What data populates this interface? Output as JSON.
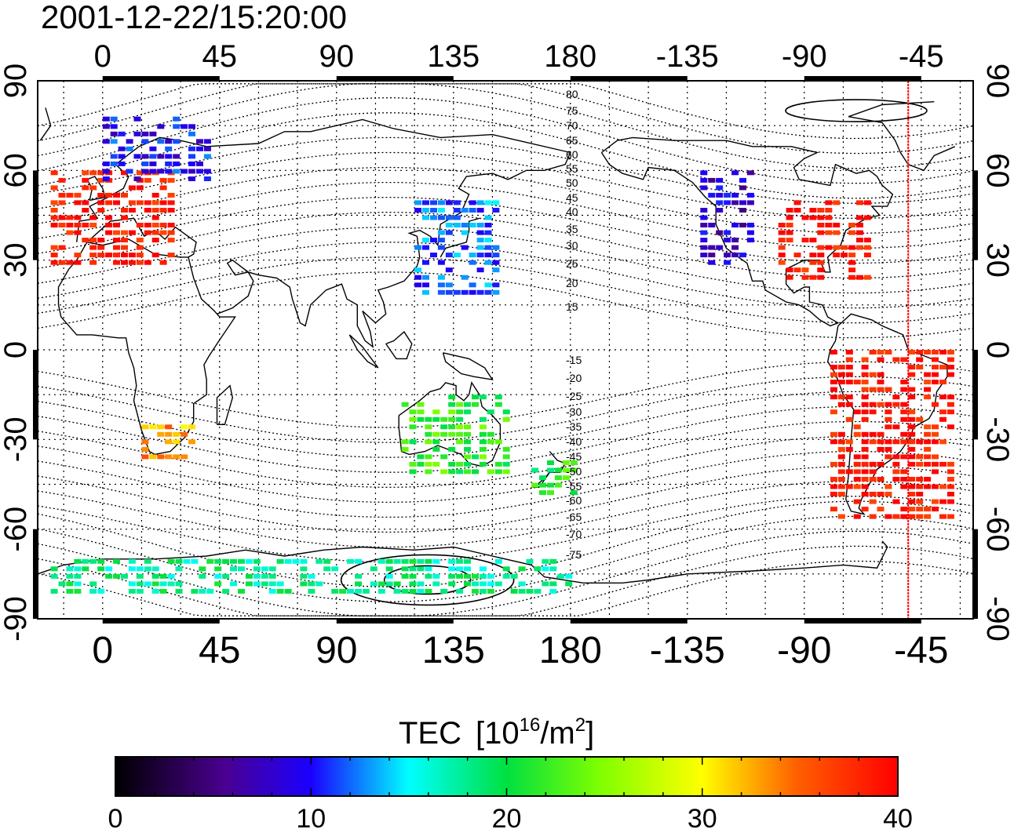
{
  "title": "2001-12-22/15:20:00",
  "lon_labels": [
    "0",
    "45",
    "90",
    "135",
    "180",
    "-135",
    "-90",
    "-45"
  ],
  "lat_labels": [
    "90",
    "60",
    "30",
    "0",
    "-30",
    "-60",
    "-90"
  ],
  "contour_labels_north": [
    "80",
    "75",
    "70",
    "65",
    "60",
    "55",
    "50",
    "45",
    "40",
    "35",
    "30",
    "25",
    "20",
    "15"
  ],
  "contour_labels_south": [
    "-15",
    "-20",
    "-25",
    "-30",
    "-35",
    "-40",
    "-45",
    "-50",
    "-55",
    "-60",
    "-65",
    "-70",
    "-75"
  ],
  "colorbar": {
    "label": "TEC",
    "unit_prefix": "[10",
    "unit_exp": "16",
    "unit_mid": "/m",
    "unit_exp2": "2",
    "unit_suffix": "]",
    "tick_labels": [
      "0",
      "10",
      "20",
      "30",
      "40"
    ],
    "range": [
      0,
      40
    ],
    "colors": [
      "#000000",
      "#5a00a8",
      "#0000ff",
      "#00ffff",
      "#00ff00",
      "#ffff00",
      "#ff8000",
      "#ff0000"
    ]
  },
  "map": {
    "lon_range": [
      -25,
      335
    ],
    "lat_range": [
      -90,
      90
    ],
    "terminator_marker_lon": -50,
    "terminator_color": "#ff0000",
    "data_regions": [
      {
        "name": "europe",
        "lon": [
          -20,
          25
        ],
        "lat": [
          30,
          60
        ],
        "tec": 39
      },
      {
        "name": "north-scandinavia",
        "lon": [
          0,
          40
        ],
        "lat": [
          58,
          78
        ],
        "tec": 10
      },
      {
        "name": "east-asia",
        "lon": [
          120,
          150
        ],
        "lat": [
          20,
          50
        ],
        "tec": 12
      },
      {
        "name": "western-north-america",
        "lon": [
          -130,
          -110
        ],
        "lat": [
          30,
          60
        ],
        "tec": 8
      },
      {
        "name": "eastern-north-america",
        "lon": [
          -100,
          -65
        ],
        "lat": [
          25,
          50
        ],
        "tec": 39
      },
      {
        "name": "south-america",
        "lon": [
          -80,
          -35
        ],
        "lat": [
          -55,
          0
        ],
        "tec": 39
      },
      {
        "name": "southern-africa",
        "lon": [
          15,
          35
        ],
        "lat": [
          -35,
          -25
        ],
        "tec": 33
      },
      {
        "name": "australia",
        "lon": [
          115,
          155
        ],
        "lat": [
          -40,
          -15
        ],
        "tec": 22
      },
      {
        "name": "new-zealand",
        "lon": [
          165,
          180
        ],
        "lat": [
          -47,
          -35
        ],
        "tec": 21
      },
      {
        "name": "antarctica-ring",
        "lon": [
          -20,
          180
        ],
        "lat": [
          -80,
          -68
        ],
        "tec": 18
      }
    ]
  }
}
